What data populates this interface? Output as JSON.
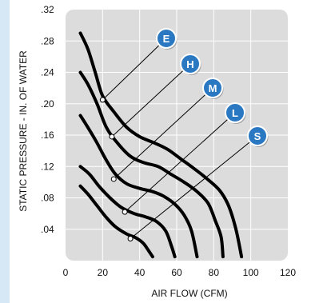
{
  "colors": {
    "plot_background": "#dcdcdc",
    "grid": "#ffffff",
    "curve": "#000000",
    "side_strip": "#d6e7f5",
    "badge_fill": "#2b78c2",
    "badge_stroke": "#ffffff"
  },
  "chart_data": {
    "type": "line",
    "xlabel": "AIR FLOW (CFM)",
    "ylabel": "STATIC PRESSURE - IN. OF WATER",
    "xlim": [
      0,
      120
    ],
    "ylim": [
      0,
      0.32
    ],
    "grid": true,
    "x_ticks": [
      "0",
      "20",
      "40",
      "60",
      "80",
      "100",
      "120"
    ],
    "y_ticks": [
      ".04",
      ".08",
      ".12",
      ".16",
      ".20",
      ".24",
      ".28",
      ".32"
    ],
    "series": [
      {
        "name": "E",
        "points": [
          [
            8,
            0.29
          ],
          [
            12,
            0.27
          ],
          [
            16,
            0.24
          ],
          [
            20,
            0.21
          ],
          [
            26,
            0.19
          ],
          [
            33,
            0.17
          ],
          [
            40,
            0.158
          ],
          [
            48,
            0.15
          ],
          [
            55,
            0.142
          ],
          [
            62,
            0.13
          ],
          [
            69,
            0.118
          ],
          [
            76,
            0.105
          ],
          [
            83,
            0.09
          ],
          [
            88,
            0.07
          ],
          [
            92,
            0.04
          ],
          [
            95,
            0.005
          ]
        ],
        "marker": [
          20,
          0.205
        ]
      },
      {
        "name": "H",
        "points": [
          [
            8,
            0.24
          ],
          [
            12,
            0.225
          ],
          [
            17,
            0.2
          ],
          [
            22,
            0.17
          ],
          [
            28,
            0.15
          ],
          [
            35,
            0.133
          ],
          [
            42,
            0.125
          ],
          [
            50,
            0.12
          ],
          [
            57,
            0.11
          ],
          [
            64,
            0.1
          ],
          [
            71,
            0.088
          ],
          [
            77,
            0.073
          ],
          [
            81,
            0.05
          ],
          [
            84,
            0.03
          ],
          [
            85,
            0.005
          ]
        ],
        "marker": [
          25,
          0.158
        ]
      },
      {
        "name": "M",
        "points": [
          [
            8,
            0.185
          ],
          [
            12,
            0.17
          ],
          [
            17,
            0.15
          ],
          [
            22,
            0.128
          ],
          [
            27,
            0.11
          ],
          [
            33,
            0.098
          ],
          [
            40,
            0.092
          ],
          [
            47,
            0.088
          ],
          [
            53,
            0.082
          ],
          [
            59,
            0.072
          ],
          [
            64,
            0.058
          ],
          [
            68,
            0.038
          ],
          [
            71,
            0.005
          ]
        ],
        "marker": [
          26,
          0.104
        ]
      },
      {
        "name": "L",
        "points": [
          [
            8,
            0.12
          ],
          [
            13,
            0.11
          ],
          [
            18,
            0.095
          ],
          [
            24,
            0.08
          ],
          [
            30,
            0.068
          ],
          [
            37,
            0.06
          ],
          [
            43,
            0.056
          ],
          [
            49,
            0.05
          ],
          [
            54,
            0.038
          ],
          [
            57,
            0.02
          ],
          [
            59,
            0.005
          ]
        ],
        "marker": [
          32,
          0.062
        ]
      },
      {
        "name": "S",
        "points": [
          [
            8,
            0.095
          ],
          [
            12,
            0.085
          ],
          [
            17,
            0.07
          ],
          [
            22,
            0.055
          ],
          [
            27,
            0.043
          ],
          [
            33,
            0.034
          ],
          [
            38,
            0.029
          ],
          [
            42,
            0.022
          ],
          [
            45,
            0.012
          ],
          [
            47,
            0.005
          ]
        ],
        "marker": [
          35,
          0.028
        ]
      }
    ]
  }
}
